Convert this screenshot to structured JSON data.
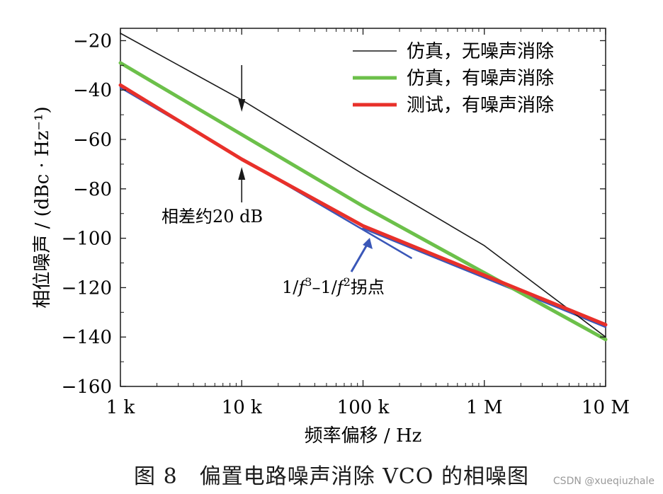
{
  "chart_data": {
    "type": "line",
    "x_scale": "log",
    "x": [
      1000,
      10000,
      100000,
      1000000,
      10000000
    ],
    "xticks": [
      "1 k",
      "10 k",
      "100 k",
      "1 M",
      "10 M"
    ],
    "xlabel": "频率偏移 / Hz",
    "ylabel": "相位噪声 / (dBc · Hz⁻¹)",
    "ylim": [
      -160,
      -15
    ],
    "yticks": [
      -20,
      -40,
      -60,
      -80,
      -100,
      -120,
      -140,
      -160
    ],
    "ytick_labels": [
      "−20",
      "−40",
      "−60",
      "−80",
      "−100",
      "−120",
      "−140",
      "−160"
    ],
    "grid": false,
    "legend_position": "top-right",
    "series": [
      {
        "name": "仿真，无噪声消除",
        "color": "#1a1a1a",
        "values": [
          -17,
          -44,
          -74,
          -103,
          -140
        ]
      },
      {
        "name": "仿真，有噪声消除",
        "color": "#6cc04a",
        "values": [
          -29,
          -58,
          -87,
          -114,
          -141
        ]
      },
      {
        "name": "测试，有噪声消除",
        "color": "#e8302a",
        "values": [
          -38,
          -68,
          -95,
          -115,
          -135
        ]
      }
    ],
    "asymptotes": [
      {
        "label": "1/f³",
        "color": "#3a57b8",
        "x": [
          1000,
          250000
        ],
        "values": [
          -39,
          -108
        ]
      },
      {
        "label": "1/f²",
        "color": "#3a57b8",
        "x": [
          100000,
          10000000
        ],
        "values": [
          -96,
          -136
        ]
      }
    ],
    "annotations": [
      {
        "text": "相差约20 dB",
        "x_at": 10000
      },
      {
        "text_prefix": "1/",
        "f": "f",
        "exp3": "3",
        "dash": "–1/",
        "exp2": "2",
        "text_suffix": "拐点"
      }
    ]
  },
  "caption": "图 8　偏置电路噪声消除 VCO 的相噪图",
  "watermark": "CSDN @xueqiuzhale"
}
